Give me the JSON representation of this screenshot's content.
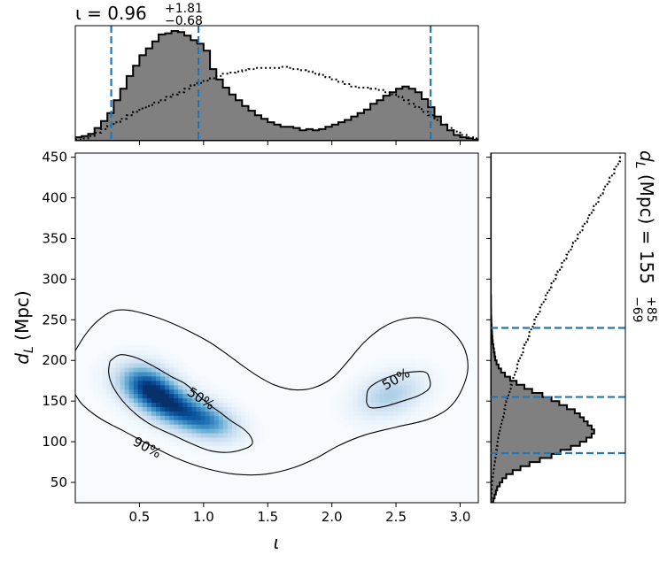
{
  "chart_data": {
    "type": "corner",
    "colors": {
      "density": "#08519c",
      "hist_fill": "#808080",
      "credible_line": "#1f77b4",
      "prior_line": "#000000"
    },
    "x_param": {
      "symbol": "ι",
      "label_text": "ι",
      "xlim": [
        0.0,
        3.1416
      ],
      "ticks": [
        0.5,
        1.0,
        1.5,
        2.0,
        2.5,
        3.0
      ],
      "tick_labels": [
        "0.5",
        "1.0",
        "1.5",
        "2.0",
        "2.5",
        "3.0"
      ],
      "title_main": "ι = 0.96",
      "title_sup": "+1.81",
      "title_sub": "−0.68",
      "median": 0.96,
      "interval": [
        0.28,
        2.77
      ]
    },
    "y_param": {
      "label_main": "d",
      "label_sub": "L",
      "label_unit": " (Mpc)",
      "ylim": [
        25,
        455
      ],
      "ticks": [
        50,
        100,
        150,
        200,
        250,
        300,
        350,
        400,
        450
      ],
      "tick_labels": [
        "50",
        "100",
        "150",
        "200",
        "250",
        "300",
        "350",
        "400",
        "450"
      ],
      "title_main": "d",
      "title_sub_L": "L",
      "title_rest": " (Mpc) = 155",
      "title_sup": "+85",
      "title_sub": "−69",
      "median": 155,
      "interval": [
        86,
        240
      ]
    },
    "x_hist": {
      "bin_width": 0.05,
      "x_start": 0.0,
      "posterior": [
        0.03,
        0.04,
        0.06,
        0.11,
        0.17,
        0.24,
        0.35,
        0.45,
        0.56,
        0.65,
        0.74,
        0.8,
        0.86,
        0.92,
        0.93,
        0.95,
        0.94,
        0.91,
        0.87,
        0.84,
        0.78,
        0.62,
        0.53,
        0.46,
        0.4,
        0.35,
        0.3,
        0.26,
        0.22,
        0.19,
        0.16,
        0.14,
        0.12,
        0.12,
        0.11,
        0.09,
        0.1,
        0.09,
        0.1,
        0.12,
        0.14,
        0.16,
        0.18,
        0.21,
        0.24,
        0.27,
        0.32,
        0.35,
        0.39,
        0.42,
        0.45,
        0.47,
        0.45,
        0.42,
        0.36,
        0.29,
        0.21,
        0.14,
        0.09,
        0.05,
        0.03,
        0.02,
        0.01
      ],
      "prior": [
        0.01,
        0.02,
        0.04,
        0.07,
        0.1,
        0.13,
        0.16,
        0.19,
        0.22,
        0.25,
        0.28,
        0.3,
        0.33,
        0.35,
        0.38,
        0.4,
        0.42,
        0.45,
        0.48,
        0.5,
        0.52,
        0.54,
        0.56,
        0.58,
        0.59,
        0.6,
        0.61,
        0.62,
        0.63,
        0.63,
        0.63,
        0.63,
        0.64,
        0.63,
        0.62,
        0.61,
        0.6,
        0.58,
        0.57,
        0.55,
        0.53,
        0.51,
        0.49,
        0.47,
        0.46,
        0.46,
        0.45,
        0.44,
        0.42,
        0.4,
        0.38,
        0.35,
        0.32,
        0.29,
        0.25,
        0.22,
        0.18,
        0.14,
        0.11,
        0.08,
        0.05,
        0.03,
        0.02
      ]
    },
    "y_hist": {
      "bin_width": 5,
      "y_start": 25,
      "posterior": [
        0.02,
        0.03,
        0.04,
        0.05,
        0.07,
        0.09,
        0.12,
        0.17,
        0.23,
        0.3,
        0.38,
        0.47,
        0.54,
        0.62,
        0.69,
        0.74,
        0.78,
        0.8,
        0.78,
        0.75,
        0.72,
        0.69,
        0.65,
        0.59,
        0.53,
        0.47,
        0.4,
        0.32,
        0.26,
        0.2,
        0.15,
        0.11,
        0.08,
        0.06,
        0.045,
        0.035,
        0.03,
        0.025,
        0.02,
        0.015,
        0.012,
        0.01,
        0.008,
        0.006,
        0.005,
        0.004,
        0.003,
        0.003,
        0.002,
        0.002,
        0.002,
        0.001,
        0.001,
        0.001,
        0.001,
        0.001,
        0.001,
        0.001,
        0.001,
        0.001,
        0.001,
        0.001,
        0.001,
        0.001,
        0.001,
        0.001,
        0.001,
        0.001,
        0.001,
        0.001,
        0.001,
        0.001,
        0.001,
        0.001,
        0.001,
        0.001,
        0.001,
        0.001,
        0.001,
        0.001,
        0.001,
        0.001,
        0.001,
        0.001,
        0.001,
        0.001
      ],
      "prior": [
        0.003,
        0.004,
        0.006,
        0.008,
        0.01,
        0.013,
        0.016,
        0.02,
        0.024,
        0.028,
        0.032,
        0.037,
        0.042,
        0.047,
        0.053,
        0.058,
        0.064,
        0.07,
        0.076,
        0.083,
        0.09,
        0.097,
        0.104,
        0.112,
        0.12,
        0.128,
        0.137,
        0.146,
        0.155,
        0.164,
        0.174,
        0.184,
        0.194,
        0.205,
        0.216,
        0.227,
        0.238,
        0.25,
        0.262,
        0.274,
        0.286,
        0.299,
        0.312,
        0.325,
        0.338,
        0.352,
        0.366,
        0.38,
        0.394,
        0.409,
        0.424,
        0.439,
        0.454,
        0.47,
        0.486,
        0.502,
        0.518,
        0.535,
        0.551,
        0.568,
        0.585,
        0.602,
        0.62,
        0.637,
        0.655,
        0.673,
        0.691,
        0.709,
        0.727,
        0.745,
        0.763,
        0.78,
        0.797,
        0.815,
        0.832,
        0.85,
        0.867,
        0.885,
        0.902,
        0.92,
        0.937,
        0.955,
        0.97,
        0.985,
        1.0,
        1.0
      ]
    },
    "density": {
      "components": [
        {
          "x": 0.72,
          "y": 148,
          "sx": 0.2,
          "sy": 20,
          "rho": -0.55,
          "w": 1.0
        },
        {
          "x": 0.55,
          "y": 175,
          "sx": 0.14,
          "sy": 16,
          "rho": -0.2,
          "w": 0.55
        },
        {
          "x": 1.05,
          "y": 125,
          "sx": 0.15,
          "sy": 15,
          "rho": -0.3,
          "w": 0.5
        },
        {
          "x": 2.45,
          "y": 158,
          "sx": 0.17,
          "sy": 18,
          "rho": 0.3,
          "w": 0.35
        }
      ],
      "contours": [
        {
          "label": "50%",
          "pts": [
            [
              0.27,
              199
            ],
            [
              0.35,
              207
            ],
            [
              0.48,
              203
            ],
            [
              0.62,
              192
            ],
            [
              0.75,
              180
            ],
            [
              0.85,
              172
            ],
            [
              0.92,
              163
            ],
            [
              0.98,
              154
            ],
            [
              1.04,
              146
            ],
            [
              1.12,
              137
            ],
            [
              1.22,
              125
            ],
            [
              1.3,
              117
            ],
            [
              1.36,
              108
            ],
            [
              1.38,
              98
            ],
            [
              1.33,
              92
            ],
            [
              1.2,
              87
            ],
            [
              1.05,
              89
            ],
            [
              0.9,
              98
            ],
            [
              0.75,
              109
            ],
            [
              0.6,
              120
            ],
            [
              0.48,
              133
            ],
            [
              0.37,
              150
            ],
            [
              0.29,
              169
            ],
            [
              0.26,
              185
            ],
            [
              0.27,
              199
            ]
          ],
          "label_at": [
            0.98,
            153
          ],
          "label_angle": 33
        },
        {
          "label": "50%",
          "pts": [
            [
              2.27,
              148
            ],
            [
              2.28,
              163
            ],
            [
              2.34,
              172
            ],
            [
              2.45,
              180
            ],
            [
              2.58,
              185
            ],
            [
              2.72,
              186
            ],
            [
              2.76,
              178
            ],
            [
              2.76,
              166
            ],
            [
              2.68,
              157
            ],
            [
              2.55,
              150
            ],
            [
              2.4,
              143
            ],
            [
              2.3,
              142
            ],
            [
              2.27,
              148
            ]
          ],
          "label_at": [
            2.5,
            177
          ],
          "label_angle": -30
        },
        {
          "label": "90%",
          "pts": [
            [
              0.0,
              212
            ],
            [
              0.08,
              232
            ],
            [
              0.17,
              248
            ],
            [
              0.28,
              260
            ],
            [
              0.4,
              262
            ],
            [
              0.55,
              257
            ],
            [
              0.72,
              248
            ],
            [
              0.9,
              235
            ],
            [
              1.05,
              222
            ],
            [
              1.18,
              208
            ],
            [
              1.3,
              194
            ],
            [
              1.42,
              181
            ],
            [
              1.55,
              170
            ],
            [
              1.7,
              164
            ],
            [
              1.85,
              166
            ],
            [
              2.0,
              178
            ],
            [
              2.12,
              198
            ],
            [
              2.25,
              222
            ],
            [
              2.4,
              241
            ],
            [
              2.56,
              251
            ],
            [
              2.72,
              252
            ],
            [
              2.88,
              243
            ],
            [
              3.02,
              219
            ],
            [
              3.06,
              190
            ],
            [
              3.0,
              160
            ],
            [
              2.9,
              140
            ],
            [
              2.74,
              127
            ],
            [
              2.5,
              118
            ],
            [
              2.25,
              108
            ],
            [
              2.05,
              95
            ],
            [
              1.88,
              80
            ],
            [
              1.7,
              68
            ],
            [
              1.48,
              60
            ],
            [
              1.25,
              60
            ],
            [
              1.02,
              67
            ],
            [
              0.8,
              79
            ],
            [
              0.58,
              96
            ],
            [
              0.38,
              113
            ],
            [
              0.2,
              128
            ],
            [
              0.06,
              145
            ],
            [
              0.0,
              158
            ]
          ],
          "label_at": [
            0.56,
            93
          ],
          "label_angle": 28
        }
      ]
    }
  }
}
